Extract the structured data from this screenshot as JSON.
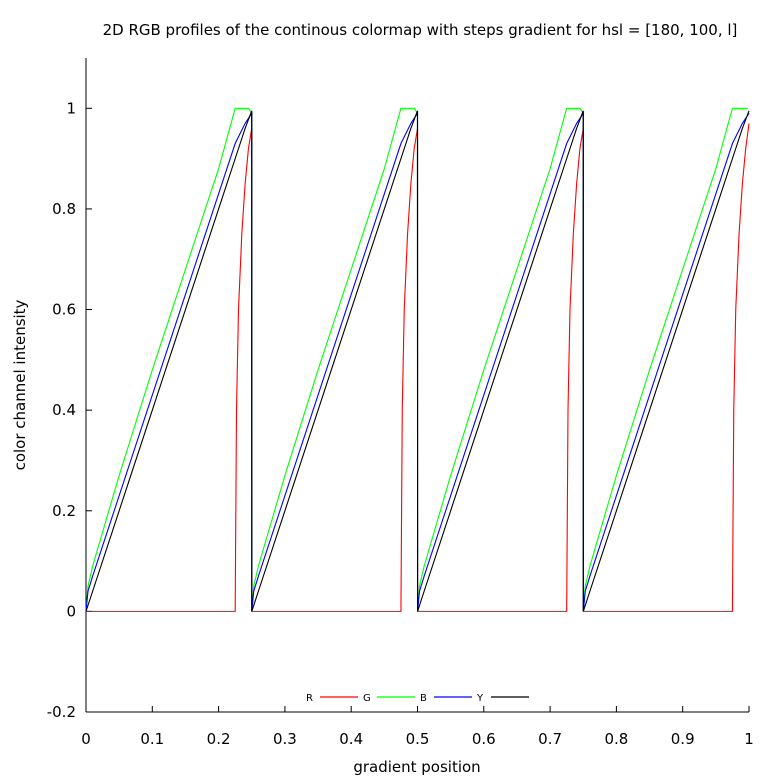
{
  "chart_data": {
    "type": "line",
    "title": "2D RGB profiles of the continous colormap with steps gradient for hsl = [180, 100, l]",
    "xlabel": "gradient position",
    "ylabel": "color channel intensity",
    "xlim": [
      0,
      1
    ],
    "ylim": [
      -0.2,
      1.1
    ],
    "xticks": [
      "0",
      "0.1",
      "0.2",
      "0.3",
      "0.4",
      "0.5",
      "0.6",
      "0.7",
      "0.8",
      "0.9",
      "1"
    ],
    "xtick_values": [
      0,
      0.1,
      0.2,
      0.3,
      0.4,
      0.5,
      0.6,
      0.7,
      0.8,
      0.9,
      1
    ],
    "yticks": [
      "-0.2",
      "0",
      "0.2",
      "0.4",
      "0.6",
      "0.8",
      "1"
    ],
    "ytick_values": [
      -0.2,
      0,
      0.2,
      0.4,
      0.6,
      0.8,
      1
    ],
    "grid": false,
    "legend_position": "bottom-center",
    "series": [
      {
        "name": "R",
        "color": "#ff0000",
        "points": [
          [
            0,
            0
          ],
          [
            0.225,
            0
          ],
          [
            0.227,
            0.4
          ],
          [
            0.23,
            0.6
          ],
          [
            0.235,
            0.75
          ],
          [
            0.24,
            0.85
          ],
          [
            0.245,
            0.92
          ],
          [
            0.25,
            0.96
          ],
          [
            0.2501,
            0
          ],
          [
            0.475,
            0
          ],
          [
            0.477,
            0.4
          ],
          [
            0.48,
            0.6
          ],
          [
            0.485,
            0.75
          ],
          [
            0.49,
            0.85
          ],
          [
            0.495,
            0.92
          ],
          [
            0.5,
            0.96
          ],
          [
            0.5001,
            0
          ],
          [
            0.725,
            0
          ],
          [
            0.727,
            0.4
          ],
          [
            0.73,
            0.6
          ],
          [
            0.735,
            0.75
          ],
          [
            0.74,
            0.85
          ],
          [
            0.745,
            0.92
          ],
          [
            0.75,
            0.96
          ],
          [
            0.7501,
            0
          ],
          [
            0.975,
            0
          ],
          [
            0.977,
            0.4
          ],
          [
            0.98,
            0.6
          ],
          [
            0.985,
            0.75
          ],
          [
            0.99,
            0.85
          ],
          [
            0.995,
            0.92
          ],
          [
            1,
            0.97
          ]
        ]
      },
      {
        "name": "G",
        "color": "#00ff00",
        "points": [
          [
            0,
            0
          ],
          [
            0.003,
            0.05
          ],
          [
            0.01,
            0.09
          ],
          [
            0.05,
            0.27
          ],
          [
            0.1,
            0.48
          ],
          [
            0.15,
            0.68
          ],
          [
            0.2,
            0.88
          ],
          [
            0.225,
            1
          ],
          [
            0.245,
            1
          ],
          [
            0.25,
            0.99
          ],
          [
            0.2501,
            0
          ],
          [
            0.253,
            0.05
          ],
          [
            0.26,
            0.09
          ],
          [
            0.3,
            0.27
          ],
          [
            0.35,
            0.48
          ],
          [
            0.4,
            0.68
          ],
          [
            0.45,
            0.88
          ],
          [
            0.475,
            1
          ],
          [
            0.495,
            1
          ],
          [
            0.5,
            0.99
          ],
          [
            0.5001,
            0
          ],
          [
            0.503,
            0.05
          ],
          [
            0.51,
            0.09
          ],
          [
            0.55,
            0.27
          ],
          [
            0.6,
            0.48
          ],
          [
            0.65,
            0.68
          ],
          [
            0.7,
            0.88
          ],
          [
            0.725,
            1
          ],
          [
            0.745,
            1
          ],
          [
            0.75,
            0.99
          ],
          [
            0.7501,
            0
          ],
          [
            0.753,
            0.05
          ],
          [
            0.76,
            0.09
          ],
          [
            0.8,
            0.27
          ],
          [
            0.85,
            0.48
          ],
          [
            0.9,
            0.68
          ],
          [
            0.95,
            0.88
          ],
          [
            0.975,
            1
          ],
          [
            0.998,
            1
          ]
        ]
      },
      {
        "name": "B",
        "color": "#0000ff",
        "points": [
          [
            0,
            0
          ],
          [
            0.003,
            0.04
          ],
          [
            0.01,
            0.07
          ],
          [
            0.05,
            0.23
          ],
          [
            0.1,
            0.43
          ],
          [
            0.15,
            0.63
          ],
          [
            0.2,
            0.83
          ],
          [
            0.225,
            0.93
          ],
          [
            0.24,
            0.97
          ],
          [
            0.25,
            0.99
          ],
          [
            0.2501,
            0
          ],
          [
            0.253,
            0.04
          ],
          [
            0.26,
            0.07
          ],
          [
            0.3,
            0.23
          ],
          [
            0.35,
            0.43
          ],
          [
            0.4,
            0.63
          ],
          [
            0.45,
            0.83
          ],
          [
            0.475,
            0.93
          ],
          [
            0.49,
            0.97
          ],
          [
            0.5,
            0.99
          ],
          [
            0.5001,
            0
          ],
          [
            0.503,
            0.04
          ],
          [
            0.51,
            0.07
          ],
          [
            0.55,
            0.23
          ],
          [
            0.6,
            0.43
          ],
          [
            0.65,
            0.63
          ],
          [
            0.7,
            0.83
          ],
          [
            0.725,
            0.93
          ],
          [
            0.74,
            0.97
          ],
          [
            0.75,
            0.99
          ],
          [
            0.7501,
            0
          ],
          [
            0.753,
            0.04
          ],
          [
            0.76,
            0.07
          ],
          [
            0.8,
            0.23
          ],
          [
            0.85,
            0.43
          ],
          [
            0.9,
            0.63
          ],
          [
            0.95,
            0.83
          ],
          [
            0.975,
            0.93
          ],
          [
            0.99,
            0.97
          ],
          [
            1,
            0.99
          ]
        ]
      },
      {
        "name": "Y",
        "color": "#000000",
        "points": [
          [
            0,
            0
          ],
          [
            0.01,
            0.04
          ],
          [
            0.05,
            0.2
          ],
          [
            0.1,
            0.4
          ],
          [
            0.15,
            0.6
          ],
          [
            0.2,
            0.8
          ],
          [
            0.225,
            0.9
          ],
          [
            0.24,
            0.96
          ],
          [
            0.25,
            0.995
          ],
          [
            0.2501,
            0
          ],
          [
            0.26,
            0.04
          ],
          [
            0.3,
            0.2
          ],
          [
            0.35,
            0.4
          ],
          [
            0.4,
            0.6
          ],
          [
            0.45,
            0.8
          ],
          [
            0.475,
            0.9
          ],
          [
            0.49,
            0.96
          ],
          [
            0.5,
            0.995
          ],
          [
            0.5001,
            0
          ],
          [
            0.51,
            0.04
          ],
          [
            0.55,
            0.2
          ],
          [
            0.6,
            0.4
          ],
          [
            0.65,
            0.6
          ],
          [
            0.7,
            0.8
          ],
          [
            0.725,
            0.9
          ],
          [
            0.74,
            0.96
          ],
          [
            0.75,
            0.995
          ],
          [
            0.7501,
            0
          ],
          [
            0.76,
            0.04
          ],
          [
            0.8,
            0.2
          ],
          [
            0.85,
            0.4
          ],
          [
            0.9,
            0.6
          ],
          [
            0.95,
            0.8
          ],
          [
            0.975,
            0.9
          ],
          [
            0.99,
            0.96
          ],
          [
            1,
            0.995
          ]
        ]
      }
    ]
  }
}
